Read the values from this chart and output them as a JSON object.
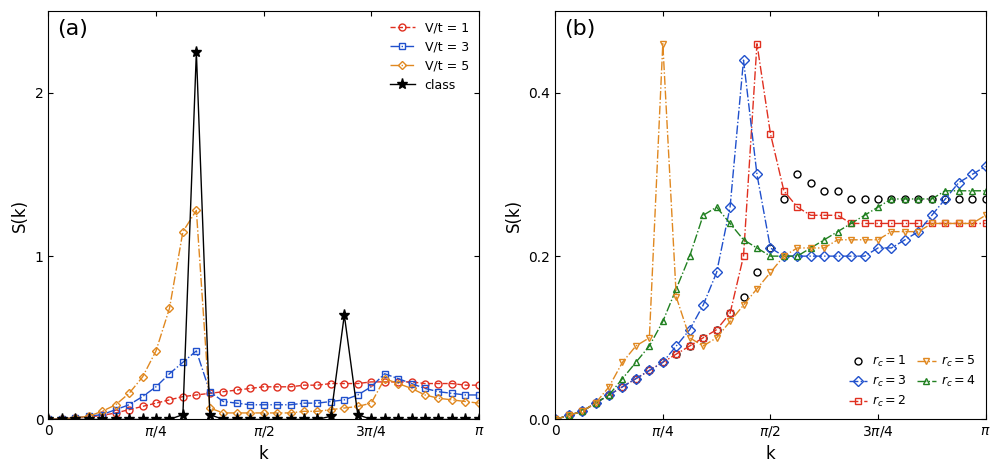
{
  "figsize": [
    10.02,
    4.74
  ],
  "dpi": 100,
  "panel_a": {
    "ylim": [
      0,
      2.5
    ],
    "yticks": [
      0,
      1,
      2
    ],
    "spike1_idx": 11,
    "spike1_val": 2.25,
    "spike2_idx": 22,
    "spike2_val": 0.64,
    "vt1_color": "#e03020",
    "vt3_color": "#2050cc",
    "vt5_color": "#e08820",
    "class_color": "#000000"
  },
  "panel_b": {
    "ylim": [
      0,
      0.5
    ],
    "yticks": [
      0,
      0.2,
      0.4
    ],
    "rc1_color": "#000000",
    "rc2_color": "#e03020",
    "rc3_color": "#2050cc",
    "rc4_color": "#208020",
    "rc5_color": "#e08820"
  }
}
